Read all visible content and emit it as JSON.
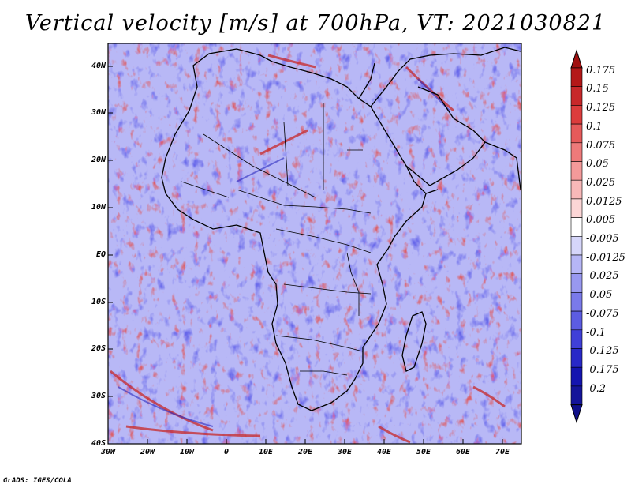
{
  "title": "Vertical velocity [m/s] at 700hPa, VT: 2021030821",
  "map": {
    "lat_labels": [
      "40N",
      "30N",
      "20N",
      "10N",
      "EQ",
      "10S",
      "20S",
      "30S",
      "40S"
    ],
    "lon_labels": [
      "30W",
      "20W",
      "10W",
      "0",
      "10E",
      "20E",
      "30E",
      "40E",
      "50E",
      "60E",
      "70E"
    ]
  },
  "colorbar": {
    "labels": [
      "0.175",
      "0.15",
      "0.125",
      "0.1",
      "0.075",
      "0.05",
      "0.025",
      "0.0125",
      "0.005",
      "-0.005",
      "-0.0125",
      "-0.025",
      "-0.05",
      "-0.075",
      "-0.1",
      "-0.125",
      "-0.175",
      "-0.2"
    ],
    "colors": [
      "#b41818",
      "#c8282a",
      "#dc3c3c",
      "#e65a5a",
      "#ee7a7a",
      "#f49a9a",
      "#f8b8b8",
      "#fcd6d6",
      "#ffffff",
      "#d6d6fa",
      "#b6b6f6",
      "#9898f0",
      "#7a7aea",
      "#5c5ce2",
      "#4040d8",
      "#2828c8",
      "#1414b0",
      "#14149a"
    ]
  },
  "credit": "GrADS: IGES/COLA"
}
